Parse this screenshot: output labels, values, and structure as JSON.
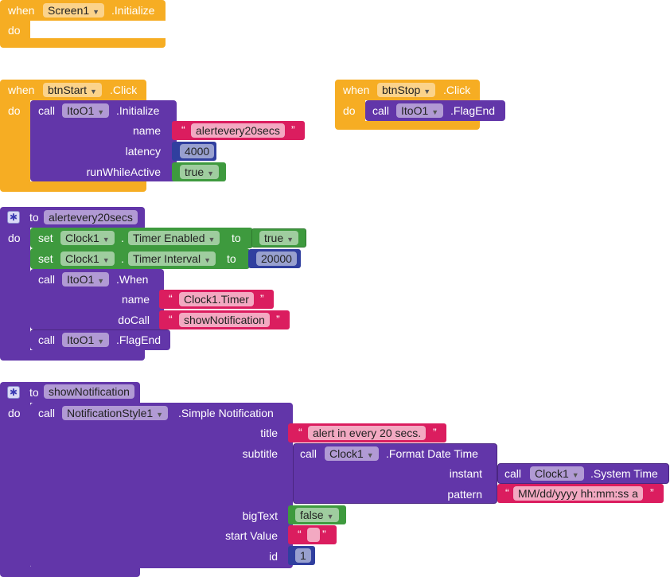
{
  "screen_initialize": {
    "when": "when",
    "component": "Screen1",
    "event": ".Initialize",
    "do": "do"
  },
  "btnstart_click": {
    "when": "when",
    "component": "btnStart",
    "event": ".Click",
    "do": "do",
    "call": "call",
    "target": "ItoO1",
    "method": ".Initialize",
    "args": [
      {
        "label": "name",
        "value": "alertevery20secs"
      },
      {
        "label": "latency",
        "value": "4000"
      },
      {
        "label": "runWhileActive",
        "value": "true"
      }
    ]
  },
  "btnstop_click": {
    "when": "when",
    "component": "btnStop",
    "event": ".Click",
    "do": "do",
    "call": "call",
    "target": "ItoO1",
    "method": ".FlagEnd"
  },
  "proc_alert": {
    "to": "to",
    "name": "alertevery20secs",
    "do": "do",
    "set1": {
      "set": "set",
      "component": "Clock1",
      "dot": ".",
      "property": "Timer Enabled",
      "to": "to",
      "value": "true"
    },
    "set2": {
      "set": "set",
      "component": "Clock1",
      "dot": ".",
      "property": "Timer Interval",
      "to": "to",
      "value": "20000"
    },
    "when_call": {
      "call": "call",
      "target": "ItoO1",
      "method": ".When",
      "args": [
        {
          "label": "name",
          "value": "Clock1.Timer"
        },
        {
          "label": "doCall",
          "value": "showNotification"
        }
      ]
    },
    "flag_call": {
      "call": "call",
      "target": "ItoO1",
      "method": ".FlagEnd"
    }
  },
  "proc_show": {
    "to": "to",
    "name": "showNotification",
    "do": "do",
    "call": "call",
    "target": "NotificationStyle1",
    "method": ".Simple Notification",
    "title_label": "title",
    "title_value": "alert in every 20 secs.",
    "subtitle_label": "subtitle",
    "format_call": {
      "call": "call",
      "target": "Clock1",
      "method": ".Format Date Time"
    },
    "instant_label": "instant",
    "system_call": {
      "call": "call",
      "target": "Clock1",
      "method": ".System Time"
    },
    "pattern_label": "pattern",
    "pattern_value": "MM/dd/yyyy hh:mm:ss a",
    "bigtext_label": "bigText",
    "bigtext_value": "false",
    "start_label": "start Value",
    "start_value": "",
    "id_label": "id",
    "id_value": "1"
  },
  "quote_open": "“",
  "quote_close": "”",
  "dropdown_arrow": "▼",
  "colors": {
    "event": "#f6ad23",
    "procedure": "#6236a9",
    "text": "#db1d5f",
    "logic": "#3e9a3e",
    "math": "#303f9f"
  }
}
